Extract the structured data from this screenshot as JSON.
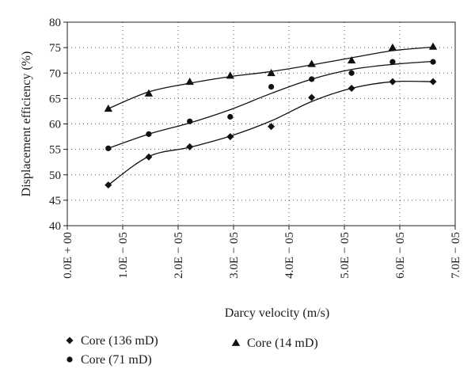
{
  "chart_data": {
    "type": "scatter",
    "xlabel": "Darcy velocity (m/s)",
    "ylabel": "Displacement efficiency (%)",
    "xlim": [
      0,
      7e-05
    ],
    "ylim": [
      40,
      80
    ],
    "x_ticks": [
      {
        "value": 0,
        "label": "0.0E + 00"
      },
      {
        "value": 1e-05,
        "label": "1.0E − 05"
      },
      {
        "value": 2e-05,
        "label": "2.0E − 05"
      },
      {
        "value": 3e-05,
        "label": "3.0E − 05"
      },
      {
        "value": 4e-05,
        "label": "4.0E − 05"
      },
      {
        "value": 5e-05,
        "label": "5.0E − 05"
      },
      {
        "value": 6e-05,
        "label": "6.0E − 05"
      },
      {
        "value": 7e-05,
        "label": "7.0E − 05"
      }
    ],
    "y_ticks": [
      40,
      45,
      50,
      55,
      60,
      65,
      70,
      75,
      80
    ],
    "grid": "dotted",
    "legend_position": "bottom",
    "series": [
      {
        "name": "Core (136 mD)",
        "marker": "diamond",
        "x": [
          7.4e-06,
          1.47e-05,
          2.21e-05,
          2.94e-05,
          3.68e-05,
          4.41e-05,
          5.13e-05,
          5.87e-05,
          6.6e-05
        ],
        "y": [
          48.0,
          53.5,
          55.5,
          57.5,
          59.5,
          65.2,
          67.0,
          68.3,
          68.3
        ],
        "fit": [
          48.0,
          53.6,
          55.4,
          57.6,
          60.6,
          64.4,
          67.0,
          68.3,
          68.3
        ]
      },
      {
        "name": "Core (71 mD)",
        "marker": "circle",
        "x": [
          7.4e-06,
          1.47e-05,
          2.21e-05,
          2.94e-05,
          3.68e-05,
          4.41e-05,
          5.13e-05,
          5.87e-05,
          6.6e-05
        ],
        "y": [
          55.2,
          58.0,
          60.5,
          61.4,
          67.3,
          68.8,
          70.0,
          72.2,
          72.2
        ],
        "fit": [
          55.2,
          58.0,
          60.2,
          62.8,
          66.0,
          68.8,
          70.7,
          71.7,
          72.3
        ]
      },
      {
        "name": "Core (14 mD)",
        "marker": "triangle",
        "x": [
          7.4e-06,
          1.47e-05,
          2.21e-05,
          2.94e-05,
          3.68e-05,
          4.41e-05,
          5.13e-05,
          5.87e-05,
          6.6e-05
        ],
        "y": [
          63.0,
          66.0,
          68.3,
          69.5,
          70.0,
          71.8,
          72.5,
          75.0,
          75.2
        ],
        "fit": [
          63.0,
          66.3,
          68.0,
          69.3,
          70.3,
          71.6,
          73.0,
          74.4,
          75.1
        ]
      }
    ]
  }
}
